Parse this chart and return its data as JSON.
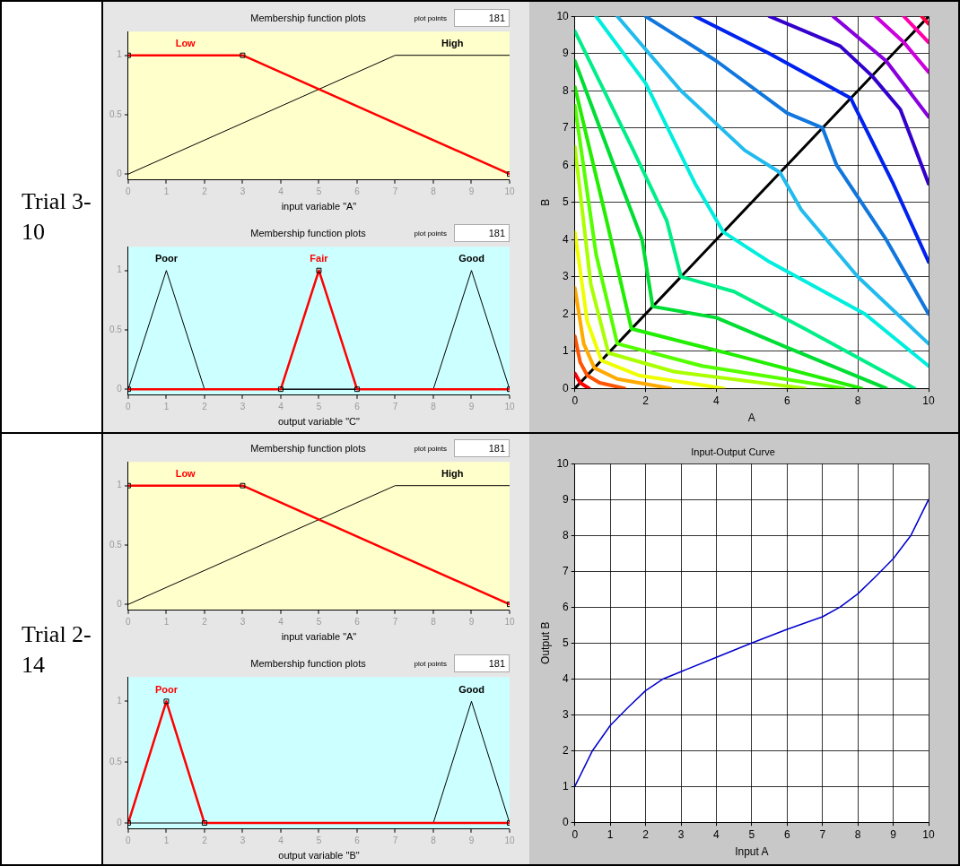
{
  "chart_data": [
    {
      "type": "other",
      "title": "Trial 3-10"
    },
    {
      "type": "line",
      "title": "Membership function plots",
      "xlabel": "input variable \"A\"",
      "annotations": [
        "plot points",
        "181"
      ],
      "xlim": [
        0,
        10
      ],
      "ylim": [
        -0.05,
        1.2
      ],
      "xticks": [
        0,
        1,
        2,
        3,
        4,
        5,
        6,
        7,
        8,
        9,
        10
      ],
      "yticks": [
        0,
        0.5,
        1
      ],
      "series": [
        {
          "name": "Low",
          "color": "#ff0000",
          "marker": "square",
          "x": [
            0,
            3,
            10
          ],
          "values": [
            1,
            1,
            0
          ]
        },
        {
          "name": "High",
          "color": "#000000",
          "x": [
            0,
            7,
            10
          ],
          "values": [
            0,
            1,
            1
          ]
        }
      ]
    },
    {
      "type": "line",
      "title": "Membership function plots",
      "xlabel": "output variable \"C\"",
      "annotations": [
        "plot points",
        "181"
      ],
      "xlim": [
        0,
        10
      ],
      "ylim": [
        -0.05,
        1.2
      ],
      "xticks": [
        0,
        1,
        2,
        3,
        4,
        5,
        6,
        7,
        8,
        9,
        10
      ],
      "yticks": [
        0,
        0.5,
        1
      ],
      "series": [
        {
          "name": "Poor",
          "color": "#000000",
          "x": [
            0,
            1,
            2,
            10
          ],
          "values": [
            0,
            1,
            0,
            0
          ]
        },
        {
          "name": "Fair",
          "color": "#ff0000",
          "marker": "square",
          "x": [
            0,
            4,
            5,
            6,
            10
          ],
          "values": [
            0,
            0,
            1,
            0,
            0
          ]
        },
        {
          "name": "Good",
          "color": "#000000",
          "x": [
            0,
            8,
            9,
            10
          ],
          "values": [
            0,
            0,
            1,
            0
          ]
        }
      ]
    },
    {
      "type": "line",
      "xlabel": "A",
      "ylabel": "B",
      "xlim": [
        0,
        10
      ],
      "ylim": [
        0,
        10
      ],
      "xticks": [
        0,
        2,
        4,
        6,
        8,
        10
      ],
      "yticks": [
        0,
        1,
        2,
        3,
        4,
        5,
        6,
        7,
        8,
        9,
        10
      ],
      "grid": true,
      "series": [
        {
          "color": "#ff0000",
          "x": [
            0,
            0.15,
            0.4
          ],
          "values": [
            0.4,
            0.15,
            0
          ]
        },
        {
          "color": "#ff5500",
          "x": [
            0,
            0.15,
            0.35,
            0.7,
            1.4
          ],
          "values": [
            1.4,
            0.7,
            0.35,
            0.15,
            0
          ]
        },
        {
          "color": "#ffaa00",
          "x": [
            0,
            0.25,
            0.55,
            1.2,
            2.7
          ],
          "values": [
            2.7,
            1.2,
            0.55,
            0.25,
            0
          ]
        },
        {
          "color": "#eeff00",
          "x": [
            0,
            0.35,
            0.75,
            1.8,
            4.2
          ],
          "values": [
            4.2,
            1.8,
            0.75,
            0.35,
            0
          ]
        },
        {
          "color": "#aaff00",
          "x": [
            0,
            0.45,
            0.95,
            2.8,
            6.5
          ],
          "values": [
            6.5,
            2.8,
            0.95,
            0.45,
            0
          ]
        },
        {
          "color": "#55ff00",
          "x": [
            0,
            0.6,
            1.2,
            3.6,
            7.6
          ],
          "values": [
            7.6,
            3.6,
            1.2,
            0.6,
            0
          ]
        },
        {
          "color": "#22ee00",
          "x": [
            0,
            0.9,
            1.6,
            4.5,
            8.1
          ],
          "values": [
            8.1,
            4.5,
            1.6,
            0.9,
            0
          ]
        },
        {
          "color": "#00dd33",
          "x": [
            0,
            1.1,
            1.9,
            2.2,
            4,
            6,
            8.8
          ],
          "values": [
            8.8,
            6,
            4,
            2.2,
            1.9,
            1.1,
            0
          ]
        },
        {
          "color": "#00ee88",
          "x": [
            0,
            1.6,
            2.6,
            3,
            4.5,
            6.5,
            9.6
          ],
          "values": [
            9.6,
            6.5,
            4.5,
            3,
            2.6,
            1.6,
            0
          ]
        },
        {
          "color": "#00eedd",
          "x": [
            0.6,
            2,
            3.4,
            4.2,
            5.5,
            8.2,
            10
          ],
          "values": [
            10,
            8.2,
            5.5,
            4.2,
            3.4,
            2,
            0.6
          ]
        },
        {
          "color": "#22bbee",
          "x": [
            1.2,
            3,
            4.8,
            5.8,
            6.4,
            8,
            10
          ],
          "values": [
            10,
            8,
            6.4,
            5.8,
            4.8,
            3,
            1.2
          ]
        },
        {
          "color": "#1177dd",
          "x": [
            2,
            4,
            6,
            7,
            7.4,
            8.8,
            10
          ],
          "values": [
            10,
            8.8,
            7.4,
            7,
            6,
            4,
            2
          ]
        },
        {
          "color": "#0022ee",
          "x": [
            3.4,
            5.5,
            7.6,
            7.8,
            7.9,
            9,
            10
          ],
          "values": [
            10,
            9,
            7.9,
            7.8,
            7.6,
            5.5,
            3.4
          ]
        },
        {
          "color": "#3300cc",
          "x": [
            5.5,
            7.5,
            8.4,
            9.2,
            10
          ],
          "values": [
            10,
            9.2,
            8.4,
            7.5,
            5.5
          ]
        },
        {
          "color": "#8800dd",
          "x": [
            7.3,
            8.8,
            10
          ],
          "values": [
            10,
            8.8,
            7.3
          ]
        },
        {
          "color": "#cc00dd",
          "x": [
            8.5,
            9.3,
            10
          ],
          "values": [
            10,
            9.3,
            8.5
          ]
        },
        {
          "color": "#ff00aa",
          "x": [
            9.3,
            9.65,
            10
          ],
          "values": [
            10,
            9.65,
            9.3
          ]
        },
        {
          "color": "#ff0044",
          "x": [
            9.8,
            9.9,
            10
          ],
          "values": [
            10,
            9.9,
            9.8
          ]
        },
        {
          "color": "#000000",
          "x": [
            0,
            10
          ],
          "values": [
            0,
            10
          ]
        }
      ]
    },
    {
      "type": "other",
      "title": "Trial 2-14"
    },
    {
      "type": "line",
      "title": "Membership function plots",
      "xlabel": "input variable \"A\"",
      "annotations": [
        "plot points",
        "181"
      ],
      "xlim": [
        0,
        10
      ],
      "ylim": [
        -0.05,
        1.2
      ],
      "xticks": [
        0,
        1,
        2,
        3,
        4,
        5,
        6,
        7,
        8,
        9,
        10
      ],
      "yticks": [
        0,
        0.5,
        1
      ],
      "series": [
        {
          "name": "Low",
          "color": "#ff0000",
          "marker": "square",
          "x": [
            0,
            3,
            10
          ],
          "values": [
            1,
            1,
            0
          ]
        },
        {
          "name": "High",
          "color": "#000000",
          "x": [
            0,
            7,
            10
          ],
          "values": [
            0,
            1,
            1
          ]
        }
      ]
    },
    {
      "type": "line",
      "title": "Membership function plots",
      "xlabel": "output variable \"B\"",
      "annotations": [
        "plot points",
        "181"
      ],
      "xlim": [
        0,
        10
      ],
      "ylim": [
        -0.05,
        1.2
      ],
      "xticks": [
        0,
        1,
        2,
        3,
        4,
        5,
        6,
        7,
        8,
        9,
        10
      ],
      "yticks": [
        0,
        0.5,
        1
      ],
      "series": [
        {
          "name": "Poor",
          "color": "#ff0000",
          "marker": "square",
          "x": [
            0,
            1,
            2,
            10
          ],
          "values": [
            0,
            1,
            0,
            0
          ]
        },
        {
          "name": "Good",
          "color": "#000000",
          "x": [
            0,
            8,
            9,
            10
          ],
          "values": [
            0,
            0,
            1,
            0
          ]
        }
      ]
    },
    {
      "type": "line",
      "title": "Input-Output Curve",
      "xlabel": "Input A",
      "ylabel": "Output B",
      "xlim": [
        0,
        10
      ],
      "ylim": [
        0,
        10
      ],
      "xticks": [
        0,
        1,
        2,
        3,
        4,
        5,
        6,
        7,
        8,
        9,
        10
      ],
      "yticks": [
        0,
        1,
        2,
        3,
        4,
        5,
        6,
        7,
        8,
        9,
        10
      ],
      "grid": true,
      "series": [
        {
          "color": "#0000cc",
          "x": [
            0,
            0.5,
            1,
            1.5,
            2,
            2.5,
            3,
            4,
            5,
            6,
            7,
            7.5,
            8,
            8.5,
            9,
            9.5,
            10
          ],
          "values": [
            1,
            2,
            2.7,
            3.2,
            3.67,
            4,
            4.2,
            4.6,
            5,
            5.38,
            5.73,
            6,
            6.37,
            6.85,
            7.35,
            8,
            9
          ]
        }
      ]
    }
  ]
}
